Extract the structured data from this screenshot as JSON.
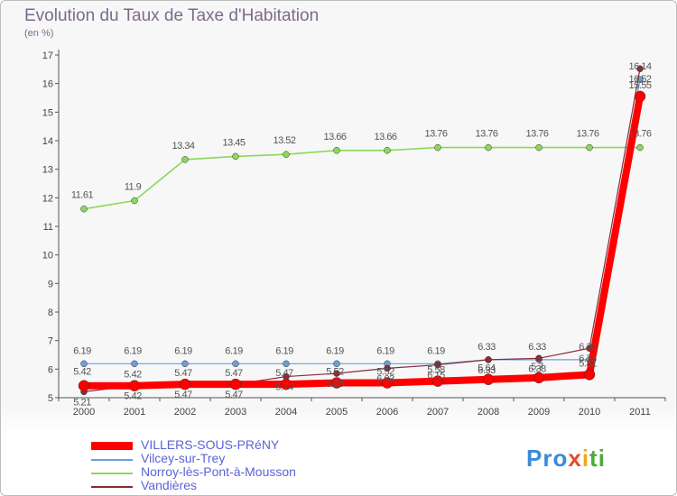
{
  "chart_data": {
    "type": "line",
    "title": "Evolution du Taux de Taxe d'Habitation",
    "subtitle": "(en %)",
    "x": [
      "2000",
      "2001",
      "2002",
      "2003",
      "2004",
      "2005",
      "2006",
      "2007",
      "2008",
      "2009",
      "2010",
      "2011"
    ],
    "ylim": [
      5,
      17
    ],
    "yticks": [
      5,
      6,
      7,
      8,
      9,
      10,
      11,
      12,
      13,
      14,
      15,
      16,
      17
    ],
    "grid": false,
    "legend_position": "bottom-left",
    "series": [
      {
        "name": "VILLERS-SOUS-PRéNY",
        "color": "#ff0000",
        "values": [
          5.42,
          5.42,
          5.47,
          5.47,
          5.47,
          5.52,
          5.52,
          5.58,
          5.64,
          5.7,
          5.81,
          15.55
        ],
        "labels": [
          "5.42",
          "5.42",
          "5.47",
          "5.47",
          "5.47",
          "5.52",
          "5.52",
          "5.58",
          "5.64",
          "5.7",
          "5.81",
          "15.55"
        ]
      },
      {
        "name": "Vilcey-sur-Trey",
        "color": "#6a9fd8",
        "values": [
          6.19,
          6.19,
          6.19,
          6.19,
          6.19,
          6.19,
          6.19,
          6.19,
          6.33,
          6.33,
          6.33,
          16.14
        ],
        "labels": [
          "6.19",
          "6.19",
          "6.19",
          "6.19",
          "6.19",
          "6.19",
          "6.19",
          "6.19",
          "6.33",
          "6.33",
          "6.33",
          "16.14"
        ]
      },
      {
        "name": "Norroy-lès-Pont-à-Mousson",
        "color": "#8cd85a",
        "values": [
          11.61,
          11.9,
          13.34,
          13.45,
          13.52,
          13.66,
          13.66,
          13.76,
          13.76,
          13.76,
          13.76,
          13.76
        ],
        "labels": [
          "11.61",
          "11.9",
          "13.34",
          "13.45",
          "13.52",
          "13.66",
          "13.66",
          "13.76",
          "13.76",
          "13.76",
          "13.76",
          "13.76"
        ]
      },
      {
        "name": "Vandières",
        "color": "#8a2a3a",
        "values": [
          5.21,
          5.42,
          5.47,
          5.47,
          5.74,
          5.85,
          6.03,
          6.15,
          6.33,
          6.38,
          6.73,
          16.52
        ],
        "labels": [
          "5.21",
          "5.42",
          "5.47",
          "5.47",
          "5.74",
          "5.85",
          "6.03",
          "6.15",
          "6.33",
          "6.38",
          "6.73",
          "16.52"
        ]
      }
    ]
  },
  "logo": {
    "p1": "Pro",
    "p2": "x",
    "p3": "i",
    "p4": "ti"
  }
}
